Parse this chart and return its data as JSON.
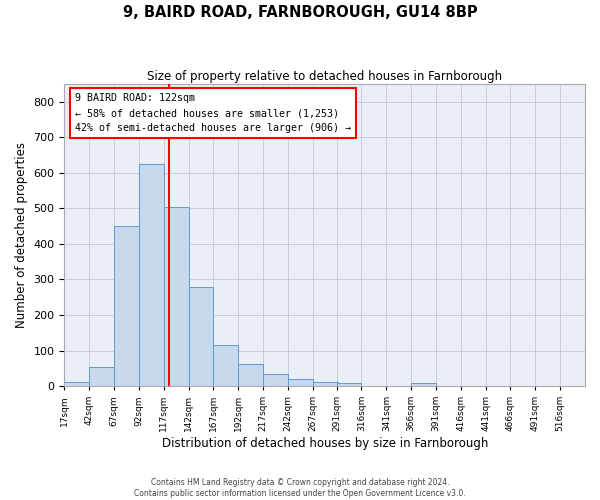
{
  "title1": "9, BAIRD ROAD, FARNBOROUGH, GU14 8BP",
  "title2": "Size of property relative to detached houses in Farnborough",
  "xlabel": "Distribution of detached houses by size in Farnborough",
  "ylabel": "Number of detached properties",
  "bar_values": [
    12,
    55,
    450,
    625,
    505,
    280,
    115,
    62,
    35,
    20,
    10,
    8,
    0,
    0,
    8,
    0,
    0,
    0,
    0
  ],
  "bin_starts": [
    17,
    42,
    67,
    92,
    117,
    142,
    167,
    192,
    217,
    242,
    267,
    291,
    316,
    341,
    366,
    391,
    416,
    441,
    466
  ],
  "bin_width": 25,
  "tick_labels": [
    "17sqm",
    "42sqm",
    "67sqm",
    "92sqm",
    "117sqm",
    "142sqm",
    "167sqm",
    "192sqm",
    "217sqm",
    "242sqm",
    "267sqm",
    "291sqm",
    "316sqm",
    "341sqm",
    "366sqm",
    "391sqm",
    "416sqm",
    "441sqm",
    "466sqm",
    "491sqm",
    "516sqm"
  ],
  "bar_color": "#c8d9ee",
  "bar_edge_color": "#5b9bd5",
  "vline_x": 122,
  "vline_color": "red",
  "annotation_line1": "9 BAIRD ROAD: 122sqm",
  "annotation_line2": "← 58% of detached houses are smaller (1,253)",
  "annotation_line3": "42% of semi-detached houses are larger (906) →",
  "annotation_box_color": "white",
  "annotation_box_edgecolor": "red",
  "ylim": [
    0,
    850
  ],
  "yticks": [
    0,
    100,
    200,
    300,
    400,
    500,
    600,
    700,
    800
  ],
  "xlim_left": 17,
  "xlim_right": 541,
  "grid_color": "#c0c8d8",
  "background_color": "#eaeff7",
  "footer1": "Contains HM Land Registry data © Crown copyright and database right 2024.",
  "footer2": "Contains public sector information licensed under the Open Government Licence v3.0."
}
